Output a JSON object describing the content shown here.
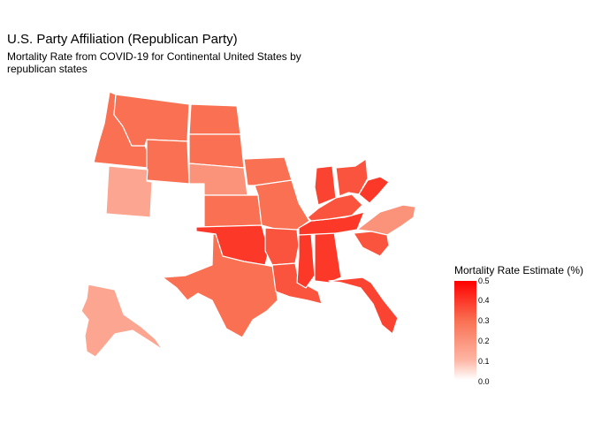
{
  "header": {
    "title": "U.S. Party Affiliation (Republican Party)",
    "subtitle": "Mortality Rate from COVID-19 for Continental United States by republican states"
  },
  "legend": {
    "title": "Mortality Rate Estimate (%)",
    "ticks": [
      "0.0",
      "0.1",
      "0.2",
      "0.3",
      "0.4",
      "0.5"
    ],
    "tick_values": [
      0.0,
      0.1,
      0.2,
      0.3,
      0.4,
      0.5
    ],
    "range": [
      0.0,
      0.5
    ],
    "low_color": "#ffffff",
    "high_color": "#ff0000"
  },
  "chart_data": {
    "type": "choropleth",
    "variable": "Mortality Rate Estimate (%)",
    "states": [
      {
        "state": "Idaho",
        "value": 0.3
      },
      {
        "state": "Montana",
        "value": 0.3
      },
      {
        "state": "North Dakota",
        "value": 0.3
      },
      {
        "state": "Wyoming",
        "value": 0.3
      },
      {
        "state": "South Dakota",
        "value": 0.3
      },
      {
        "state": "Utah",
        "value": 0.15
      },
      {
        "state": "Nebraska",
        "value": 0.2
      },
      {
        "state": "Kansas",
        "value": 0.3
      },
      {
        "state": "Iowa",
        "value": 0.3
      },
      {
        "state": "Missouri",
        "value": 0.3
      },
      {
        "state": "Oklahoma",
        "value": 0.4
      },
      {
        "state": "Texas",
        "value": 0.3
      },
      {
        "state": "Arkansas",
        "value": 0.35
      },
      {
        "state": "Louisiana",
        "value": 0.35
      },
      {
        "state": "Mississippi",
        "value": 0.4
      },
      {
        "state": "Alabama",
        "value": 0.4
      },
      {
        "state": "Tennessee",
        "value": 0.4
      },
      {
        "state": "Kentucky",
        "value": 0.35
      },
      {
        "state": "Indiana",
        "value": 0.38
      },
      {
        "state": "Ohio",
        "value": 0.35
      },
      {
        "state": "West Virginia",
        "value": 0.4
      },
      {
        "state": "North Carolina",
        "value": 0.2
      },
      {
        "state": "South Carolina",
        "value": 0.35
      },
      {
        "state": "Florida",
        "value": 0.38
      },
      {
        "state": "Alaska",
        "value": 0.15
      }
    ]
  }
}
